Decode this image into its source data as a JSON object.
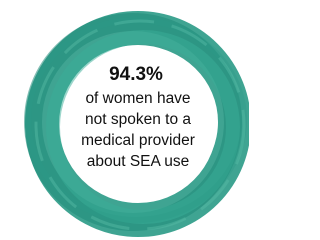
{
  "stat": {
    "value": "94.3%",
    "caption_lines": [
      "of women have",
      "not spoken to a",
      "medical provider",
      "about SEA use"
    ]
  }
}
